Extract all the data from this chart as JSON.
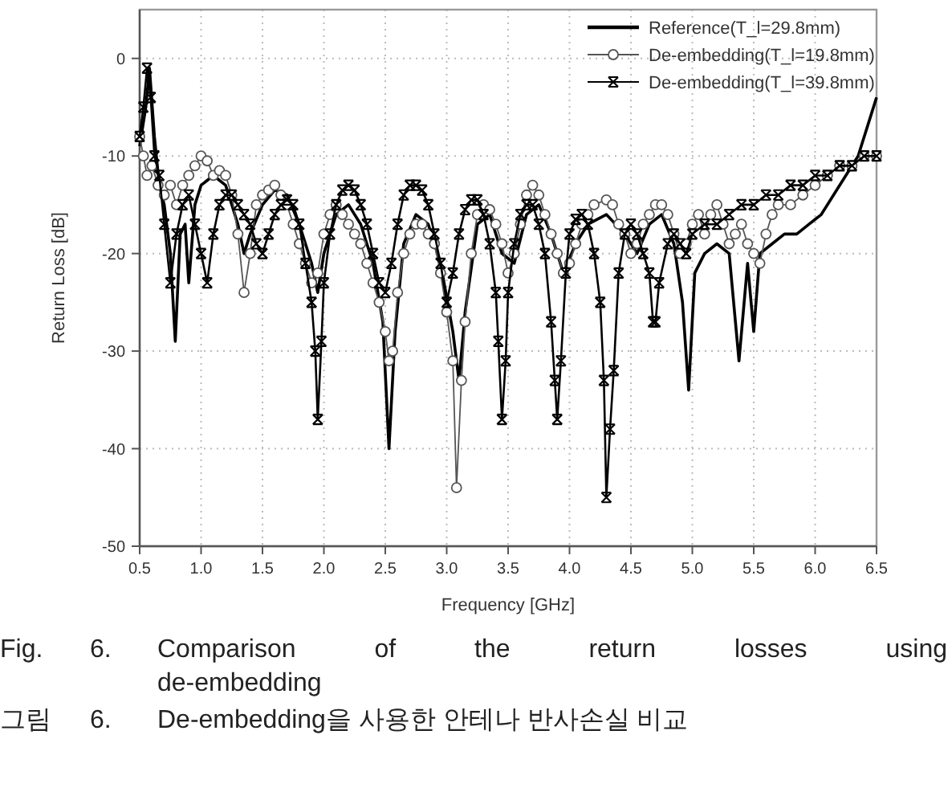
{
  "chart_data": {
    "type": "line",
    "xlabel": "Frequency [GHz]",
    "ylabel": "Return Loss [dB]",
    "xlim": [
      0.5,
      6.5
    ],
    "ylim": [
      -50,
      5
    ],
    "xticks": [
      0.5,
      {
        "value": 1,
        "label": "1.0"
      },
      1.5,
      {
        "value": 2,
        "label": "2.0"
      },
      2.5,
      {
        "value": 3,
        "label": "3.0"
      },
      3.5,
      {
        "value": 4,
        "label": "4.0"
      },
      4.5,
      {
        "value": 5,
        "label": "5.0"
      },
      5.5,
      {
        "value": 6,
        "label": "6.0"
      },
      6.5
    ],
    "yticks": [
      0,
      -10,
      -20,
      -30,
      -40,
      -50
    ],
    "grid": true,
    "legend": "top right",
    "line_style": "solid",
    "series": [
      {
        "name": "Reference(T_l=29.8mm)",
        "color": "#000000",
        "marker": "none",
        "x": [
          0.5,
          0.55,
          0.58,
          0.62,
          0.66,
          0.7,
          0.75,
          0.79,
          0.83,
          0.87,
          0.9,
          0.95,
          1.0,
          1.1,
          1.2,
          1.3,
          1.35,
          1.4,
          1.5,
          1.6,
          1.7,
          1.8,
          1.9,
          1.95,
          2.0,
          2.1,
          2.2,
          2.3,
          2.4,
          2.48,
          2.53,
          2.58,
          2.65,
          2.75,
          2.85,
          2.95,
          3.05,
          3.1,
          3.15,
          3.25,
          3.35,
          3.45,
          3.55,
          3.65,
          3.75,
          3.85,
          3.95,
          4.05,
          4.15,
          4.3,
          4.45,
          4.55,
          4.65,
          4.75,
          4.85,
          4.92,
          4.97,
          5.02,
          5.1,
          5.2,
          5.3,
          5.38,
          5.45,
          5.5,
          5.55,
          5.65,
          5.75,
          5.85,
          5.95,
          6.05,
          6.15,
          6.25,
          6.35,
          6.45,
          6.5
        ],
        "values": [
          -9,
          -5,
          -1,
          -8,
          -13,
          -15,
          -20,
          -29,
          -18,
          -17,
          -23,
          -15,
          -13,
          -12,
          -13,
          -17,
          -20,
          -18,
          -15,
          -13.5,
          -14,
          -17,
          -21,
          -24,
          -20,
          -16,
          -15,
          -17,
          -21,
          -27,
          -40,
          -28,
          -19,
          -16,
          -17,
          -21,
          -28,
          -33,
          -26,
          -17,
          -16,
          -20,
          -21,
          -16,
          -15,
          -18,
          -22,
          -19,
          -17,
          -16,
          -18,
          -20,
          -17,
          -16,
          -19,
          -25,
          -34,
          -22,
          -20,
          -19,
          -20,
          -31,
          -21,
          -28,
          -20,
          -19,
          -18,
          -18,
          -17,
          -16,
          -14,
          -12,
          -10,
          -6,
          -4
        ]
      },
      {
        "name": "De-embedding(T_l=19.8mm)",
        "color": "#555555",
        "marker": "circle",
        "x": [
          0.5,
          0.53,
          0.56,
          0.6,
          0.65,
          0.7,
          0.75,
          0.8,
          0.85,
          0.9,
          0.95,
          1.0,
          1.05,
          1.1,
          1.15,
          1.2,
          1.25,
          1.3,
          1.35,
          1.4,
          1.45,
          1.5,
          1.55,
          1.6,
          1.65,
          1.7,
          1.75,
          1.8,
          1.85,
          1.9,
          1.95,
          2.0,
          2.05,
          2.1,
          2.15,
          2.2,
          2.25,
          2.3,
          2.35,
          2.4,
          2.45,
          2.5,
          2.53,
          2.56,
          2.6,
          2.65,
          2.7,
          2.75,
          2.8,
          2.85,
          2.9,
          2.95,
          3.0,
          3.05,
          3.08,
          3.12,
          3.15,
          3.2,
          3.25,
          3.3,
          3.35,
          3.4,
          3.45,
          3.5,
          3.55,
          3.6,
          3.65,
          3.7,
          3.75,
          3.8,
          3.85,
          3.9,
          3.95,
          4.0,
          4.05,
          4.1,
          4.15,
          4.2,
          4.3,
          4.35,
          4.4,
          4.45,
          4.5,
          4.55,
          4.6,
          4.65,
          4.7,
          4.75,
          4.8,
          4.85,
          4.9,
          4.95,
          5.0,
          5.05,
          5.1,
          5.15,
          5.2,
          5.25,
          5.3,
          5.35,
          5.4,
          5.45,
          5.5,
          5.55,
          5.6,
          5.65,
          5.7,
          5.8,
          5.9,
          6.0,
          6.1,
          6.2,
          6.3,
          6.4,
          6.5
        ],
        "values": [
          -8,
          -10,
          -12,
          -11,
          -13,
          -14,
          -13,
          -15,
          -13,
          -12,
          -11,
          -10,
          -10.5,
          -12,
          -11.5,
          -12,
          -14,
          -18,
          -24,
          -20,
          -15,
          -14,
          -13.5,
          -13,
          -14,
          -15,
          -17,
          -19,
          -21,
          -23,
          -22,
          -18,
          -16,
          -15,
          -16,
          -17,
          -18,
          -19,
          -21,
          -23,
          -25,
          -28,
          -31,
          -30,
          -24,
          -20,
          -18,
          -17,
          -17,
          -18,
          -19,
          -22,
          -26,
          -31,
          -44,
          -33,
          -27,
          -20,
          -16,
          -15,
          -15.5,
          -17,
          -19,
          -22,
          -20,
          -17,
          -14,
          -13,
          -14,
          -16,
          -18,
          -20,
          -22,
          -21,
          -19,
          -17,
          -16,
          -15,
          -14.5,
          -15,
          -17,
          -18,
          -20,
          -19,
          -17,
          -16,
          -15,
          -15,
          -16,
          -18,
          -20,
          -19,
          -17,
          -16,
          -18,
          -16,
          -15,
          -17,
          -19,
          -18,
          -17,
          -19,
          -20,
          -21,
          -18,
          -16,
          -15,
          -15,
          -14,
          -13,
          -12,
          -11,
          -11,
          -10,
          -10
        ]
      },
      {
        "name": "De-embedding(T_l=39.8mm)",
        "color": "#000000",
        "marker": "cross",
        "x": [
          0.5,
          0.53,
          0.56,
          0.59,
          0.62,
          0.66,
          0.7,
          0.75,
          0.8,
          0.85,
          0.9,
          0.95,
          1.0,
          1.05,
          1.1,
          1.15,
          1.2,
          1.25,
          1.3,
          1.35,
          1.4,
          1.45,
          1.5,
          1.55,
          1.6,
          1.65,
          1.7,
          1.75,
          1.8,
          1.85,
          1.9,
          1.93,
          1.95,
          1.98,
          2.0,
          2.05,
          2.1,
          2.15,
          2.2,
          2.25,
          2.3,
          2.35,
          2.4,
          2.45,
          2.5,
          2.55,
          2.6,
          2.65,
          2.7,
          2.75,
          2.8,
          2.85,
          2.9,
          2.95,
          3.0,
          3.05,
          3.1,
          3.15,
          3.2,
          3.25,
          3.3,
          3.35,
          3.4,
          3.42,
          3.45,
          3.48,
          3.5,
          3.55,
          3.6,
          3.65,
          3.7,
          3.75,
          3.8,
          3.85,
          3.88,
          3.9,
          3.93,
          3.97,
          4.0,
          4.05,
          4.1,
          4.15,
          4.2,
          4.25,
          4.28,
          4.3,
          4.33,
          4.36,
          4.4,
          4.45,
          4.5,
          4.55,
          4.6,
          4.65,
          4.68,
          4.7,
          4.73,
          4.8,
          4.85,
          4.9,
          4.95,
          5.0,
          5.1,
          5.2,
          5.3,
          5.4,
          5.5,
          5.6,
          5.7,
          5.8,
          5.9,
          6.0,
          6.1,
          6.2,
          6.3,
          6.4,
          6.5
        ],
        "values": [
          -8,
          -5,
          -1,
          -4,
          -10,
          -12,
          -17,
          -23,
          -18,
          -15,
          -14,
          -17,
          -20,
          -23,
          -18,
          -15,
          -14,
          -14,
          -15,
          -16,
          -17,
          -19,
          -20,
          -18,
          -16,
          -15,
          -14.5,
          -15,
          -17,
          -21,
          -25,
          -30,
          -37,
          -29,
          -23,
          -18,
          -15,
          -13.5,
          -13,
          -13.5,
          -15,
          -17,
          -20,
          -23,
          -24,
          -21,
          -17,
          -14,
          -13,
          -13,
          -13.5,
          -15,
          -18,
          -21,
          -25,
          -22,
          -18,
          -15.5,
          -14.5,
          -14.5,
          -16,
          -19,
          -24,
          -29,
          -37,
          -31,
          -24,
          -19,
          -16,
          -15,
          -15,
          -17,
          -20,
          -27,
          -33,
          -37,
          -31,
          -22,
          -18,
          -16.5,
          -16,
          -17,
          -20,
          -25,
          -33,
          -45,
          -38,
          -32,
          -22,
          -18,
          -17,
          -18,
          -20,
          -22,
          -27,
          -27,
          -23,
          -19,
          -18,
          -19,
          -20,
          -18,
          -17,
          -17,
          -16,
          -15,
          -15,
          -14,
          -14,
          -13,
          -13,
          -12,
          -12,
          -11,
          -11,
          -10,
          -10
        ]
      }
    ],
    "annotations": [
      "Fig.   6.   Comparison of the return losses using de-embedding",
      "그림   6.   De-embedding을 사용한 안테나 반사손실 비교"
    ]
  }
}
